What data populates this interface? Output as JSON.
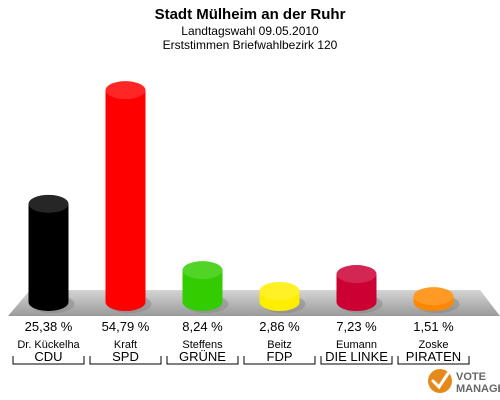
{
  "chart_data": {
    "type": "bar",
    "title": "Stadt Mülheim an der Ruhr",
    "subtitle": "Landtagswahl 09.05.2010",
    "subtitle2": "Erststimmen Briefwahlbezirk 120",
    "categories": [
      "CDU",
      "SPD",
      "GRÜNE",
      "FDP",
      "DIE LINKE",
      "PIRATEN"
    ],
    "candidates": [
      "Dr. Kückelha",
      "Kraft",
      "Steffens",
      "Beitz",
      "Eumann",
      "Zoske"
    ],
    "values": [
      25.38,
      54.79,
      8.24,
      2.86,
      7.23,
      1.51
    ],
    "value_labels": [
      "25,38 %",
      "54,79 %",
      "8,24 %",
      "2,86 %",
      "7,23 %",
      "1,51 %"
    ],
    "colors": [
      "#000000",
      "#ff0000",
      "#33cc00",
      "#ffee00",
      "#cc0033",
      "#ff8800"
    ],
    "ylim": [
      0,
      60
    ],
    "grid": false,
    "legend": "none"
  },
  "logo": {
    "line1": "VOTE",
    "line2": "MANAGER"
  }
}
